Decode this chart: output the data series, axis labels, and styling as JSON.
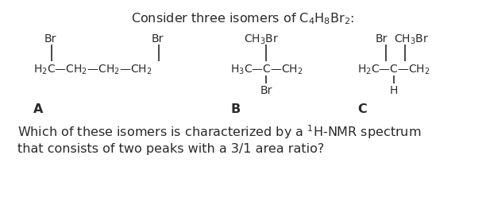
{
  "bg_color": "#ffffff",
  "text_color": "#2a2a2a",
  "title": "Consider three isomers of C$_4$H$_8$Br$_2$:",
  "title_fs": 11.5,
  "struct_fs": 10.0,
  "label_fs": 11.5,
  "q_fs": 11.5,
  "question_line1": "Which of these isomers is characterized by a $^1$H-NMR spectrum",
  "question_line2": "that consists of two peaks with a 3/1 area ratio?"
}
